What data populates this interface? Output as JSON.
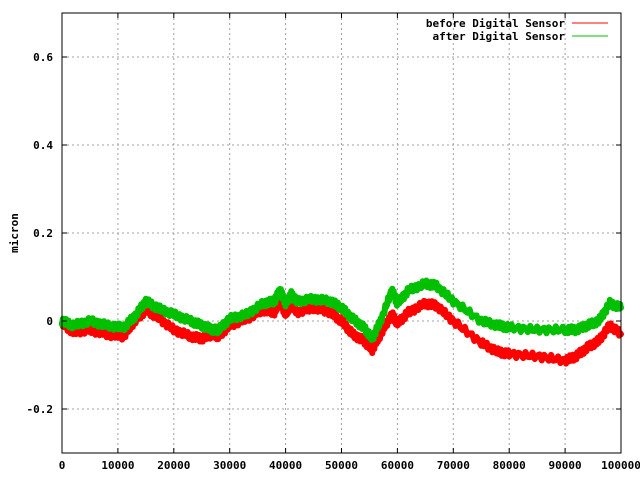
{
  "chart_data": {
    "type": "line",
    "title": "",
    "xlabel": "",
    "ylabel": "micron",
    "xlim": [
      0,
      100000
    ],
    "ylim": [
      -0.3,
      0.7
    ],
    "x_ticks": [
      0,
      10000,
      20000,
      30000,
      40000,
      50000,
      60000,
      70000,
      80000,
      90000,
      100000
    ],
    "x_tick_labels": [
      "0",
      "10000",
      "20000",
      "30000",
      "40000",
      "50000",
      "60000",
      "70000",
      "80000",
      "90000",
      "100000"
    ],
    "y_ticks": [
      -0.2,
      0,
      0.2,
      0.4,
      0.6
    ],
    "y_tick_labels": [
      "-0.2",
      "0",
      "0.2",
      "0.4",
      "0.6"
    ],
    "grid": true,
    "legend_position": "top-right",
    "x": [
      0,
      2000,
      5000,
      8000,
      11000,
      13000,
      15000,
      17000,
      20000,
      23000,
      25000,
      27000,
      28000,
      30000,
      33000,
      36000,
      38000,
      39000,
      40000,
      41000,
      42000,
      45000,
      48000,
      50000,
      52000,
      54000,
      55500,
      57000,
      59000,
      60000,
      62000,
      65000,
      67000,
      70000,
      75000,
      78000,
      80000,
      85000,
      90000,
      92000,
      94000,
      96000,
      98000,
      100000
    ],
    "series": [
      {
        "name": "before Digital Sensor",
        "color": "#ff0000",
        "values": [
          -0.005,
          -0.025,
          -0.02,
          -0.03,
          -0.035,
          0.0,
          0.025,
          0.01,
          -0.02,
          -0.035,
          -0.04,
          -0.03,
          -0.035,
          -0.01,
          0.005,
          0.025,
          0.02,
          0.045,
          0.015,
          0.04,
          0.02,
          0.03,
          0.02,
          0.0,
          -0.03,
          -0.045,
          -0.065,
          -0.03,
          0.015,
          -0.005,
          0.02,
          0.04,
          0.035,
          0.0,
          -0.05,
          -0.07,
          -0.075,
          -0.08,
          -0.09,
          -0.08,
          -0.06,
          -0.045,
          -0.01,
          -0.03
        ]
      },
      {
        "name": "after Digital Sensor",
        "color": "#00c000",
        "values": [
          0.0,
          -0.01,
          0.0,
          -0.01,
          -0.015,
          0.01,
          0.045,
          0.03,
          0.015,
          0.0,
          -0.01,
          -0.02,
          -0.02,
          0.005,
          0.015,
          0.04,
          0.045,
          0.07,
          0.04,
          0.06,
          0.045,
          0.05,
          0.045,
          0.03,
          0.005,
          -0.015,
          -0.04,
          0.0,
          0.07,
          0.04,
          0.07,
          0.085,
          0.08,
          0.045,
          0.0,
          -0.01,
          -0.015,
          -0.02,
          -0.02,
          -0.02,
          -0.01,
          0.0,
          0.04,
          0.03
        ]
      }
    ]
  }
}
